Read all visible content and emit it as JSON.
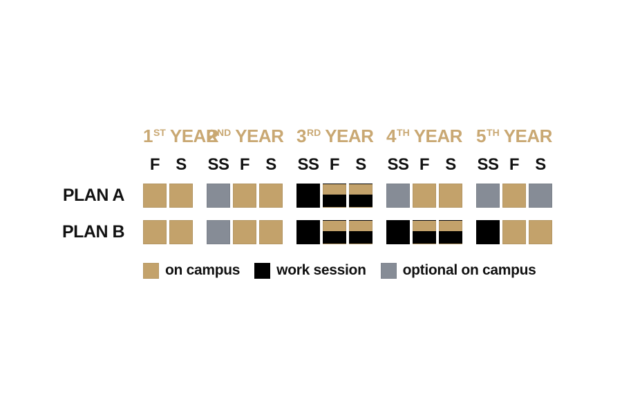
{
  "colors": {
    "on_campus": "#c3a26b",
    "work_session": "#000000",
    "optional_on_campus": "#868c96",
    "header_gold": "#c9a873",
    "text": "#111111",
    "background": "#ffffff"
  },
  "years": [
    {
      "number": "1",
      "ordinal": "ST",
      "word": "YEAR",
      "semesters": [
        "F",
        "S"
      ]
    },
    {
      "number": "2",
      "ordinal": "ND",
      "word": "YEAR",
      "semesters": [
        "SS",
        "F",
        "S"
      ]
    },
    {
      "number": "3",
      "ordinal": "RD",
      "word": "YEAR",
      "semesters": [
        "SS",
        "F",
        "S"
      ]
    },
    {
      "number": "4",
      "ordinal": "TH",
      "word": "YEAR",
      "semesters": [
        "SS",
        "F",
        "S"
      ]
    },
    {
      "number": "5",
      "ordinal": "TH",
      "word": "YEAR",
      "semesters": [
        "SS",
        "F",
        "S"
      ]
    }
  ],
  "plans": [
    {
      "label": "PLAN A",
      "cells": [
        [
          "on_campus",
          "on_campus"
        ],
        [
          "optional_on_campus",
          "on_campus",
          "on_campus"
        ],
        [
          "work_session",
          "split",
          "split"
        ],
        [
          "optional_on_campus",
          "on_campus",
          "on_campus"
        ],
        [
          "optional_on_campus",
          "on_campus",
          "optional_on_campus"
        ]
      ]
    },
    {
      "label": "PLAN B",
      "cells": [
        [
          "on_campus",
          "on_campus"
        ],
        [
          "optional_on_campus",
          "on_campus",
          "on_campus"
        ],
        [
          "work_session",
          "split",
          "split"
        ],
        [
          "work_session",
          "split",
          "split"
        ],
        [
          "work_session",
          "on_campus",
          "on_campus"
        ]
      ]
    }
  ],
  "legend": [
    {
      "swatch": "on_campus",
      "label": "on campus"
    },
    {
      "swatch": "work_session",
      "label": "work session"
    },
    {
      "swatch": "optional_on_campus",
      "label": "optional on campus"
    }
  ]
}
